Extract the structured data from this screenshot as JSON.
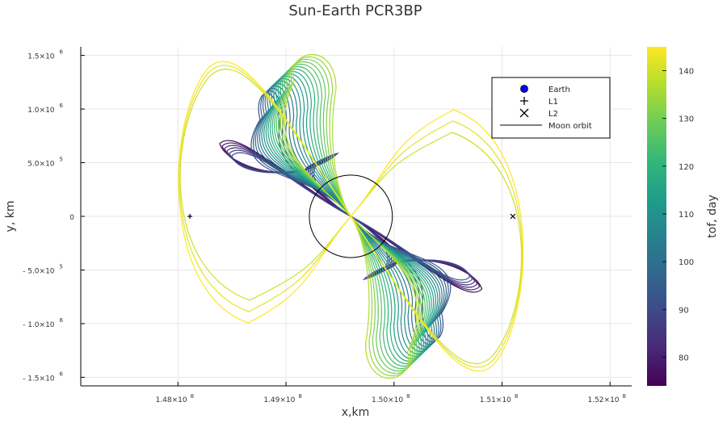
{
  "chart_data": {
    "type": "line",
    "title": "Sun-Earth PCR3BP",
    "xlabel": "x,km",
    "ylabel": "y, km",
    "xlim": [
      147100000,
      152200000
    ],
    "ylim": [
      -1580000,
      1580000
    ],
    "x_ticks": [
      {
        "value": 148000000,
        "mantissa": "1.48×10",
        "exp": "8"
      },
      {
        "value": 149000000,
        "mantissa": "1.49×10",
        "exp": "8"
      },
      {
        "value": 150000000,
        "mantissa": "1.50×10",
        "exp": "8"
      },
      {
        "value": 151000000,
        "mantissa": "1.51×10",
        "exp": "8"
      },
      {
        "value": 152000000,
        "mantissa": "1.52×10",
        "exp": "8"
      }
    ],
    "y_ticks": [
      {
        "value": 1500000,
        "mantissa": "1.5×10",
        "exp": "6"
      },
      {
        "value": 1000000,
        "mantissa": "1.0×10",
        "exp": "6"
      },
      {
        "value": 500000,
        "mantissa": "5.0×10",
        "exp": "5"
      },
      {
        "value": 0,
        "mantissa": "0",
        "exp": ""
      },
      {
        "value": -500000,
        "mantissa": "- 5.0×10",
        "exp": "5"
      },
      {
        "value": -1000000,
        "mantissa": "- 1.0×10",
        "exp": "6"
      },
      {
        "value": -1500000,
        "mantissa": "- 1.5×10",
        "exp": "6"
      }
    ],
    "grid": true,
    "legend_position": "top-right",
    "legend": [
      {
        "label": "Earth",
        "marker": "circle",
        "color": "#0000ff"
      },
      {
        "label": "L1",
        "marker": "plus",
        "color": "#000000"
      },
      {
        "label": "L2",
        "marker": "cross",
        "color": "#000000"
      },
      {
        "label": "Moon orbit",
        "marker": "line",
        "color": "#000000"
      }
    ],
    "earth": {
      "x": 149600000,
      "y": 0
    },
    "L1": {
      "x": 148110000,
      "y": 0
    },
    "L2": {
      "x": 151100000,
      "y": 0
    },
    "moon_orbit_radius": 384400,
    "colorbar": {
      "label": "tof, day",
      "range": [
        74,
        145
      ],
      "ticks": [
        80,
        90,
        100,
        110,
        120,
        130,
        140
      ],
      "colormap": "viridis"
    },
    "trajectory_families": {
      "tof_range": [
        76,
        145
      ],
      "count": 26,
      "earth_departure": {
        "x": 149600000,
        "y": 0
      },
      "inner_loop_far_end": {
        "x": 148550000,
        "y": 650000
      },
      "petal_tip_max": {
        "x": 149100000,
        "y": 1470000
      },
      "large_loop_extent": {
        "x_min": 147930000,
        "y_max": 1310000
      }
    }
  }
}
